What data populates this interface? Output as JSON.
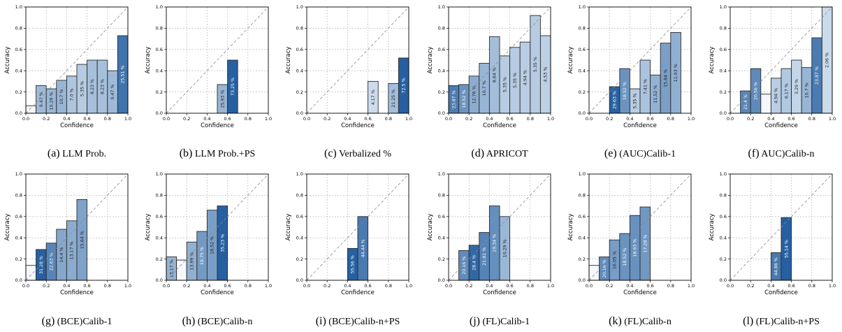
{
  "axes_common": {
    "xlabel": "Confidence",
    "ylabel": "Accuracy",
    "xlim": [
      0,
      1
    ],
    "ylim": [
      0,
      1
    ],
    "ticks": [
      "0.0",
      "0.2",
      "0.4",
      "0.6",
      "0.8",
      "1.0"
    ],
    "grid": true,
    "diagonal": true
  },
  "chart_data": [
    {
      "type": "bar",
      "caption_tag": "(a)",
      "caption_text": "LLM Prob.",
      "bins": [
        [
          0,
          0.07,
          null
        ],
        [
          1,
          0.26,
          "9.47 %"
        ],
        [
          2,
          0.23,
          "10.29 %"
        ],
        [
          3,
          0.31,
          "10.7 %"
        ],
        [
          4,
          0.35,
          "7.0 %"
        ],
        [
          5,
          0.46,
          "5.35 %"
        ],
        [
          6,
          0.5,
          "8.23 %"
        ],
        [
          7,
          0.5,
          "8.23 %"
        ],
        [
          8,
          0.4,
          "9.47 %"
        ],
        [
          9,
          0.73,
          "25.51 %"
        ]
      ]
    },
    {
      "type": "bar",
      "caption_tag": "(b)",
      "caption_text": "LLM Prob.+PS",
      "bins": [
        [
          5,
          0.27,
          "25.93 %"
        ],
        [
          6,
          0.5,
          "73.25 %"
        ]
      ]
    },
    {
      "type": "bar",
      "caption_tag": "(c)",
      "caption_text": "Verbalized %",
      "bins": [
        [
          6,
          0.3,
          "4.17 %"
        ],
        [
          8,
          0.28,
          "21.25 %"
        ],
        [
          9,
          0.52,
          "72.5 %"
        ]
      ]
    },
    {
      "type": "bar",
      "caption_tag": "(d)",
      "caption_text": "APRICOT",
      "bins": [
        [
          0,
          0.26,
          "23.87 %"
        ],
        [
          1,
          0.27,
          "18.52 %"
        ],
        [
          2,
          0.35,
          "12.76 %"
        ],
        [
          3,
          0.47,
          "10.7 %"
        ],
        [
          4,
          0.72,
          "8.64 %"
        ],
        [
          5,
          0.54,
          "5.35 %"
        ],
        [
          6,
          0.62,
          "5.35 %"
        ],
        [
          7,
          0.67,
          "4.94 %"
        ],
        [
          8,
          0.92,
          "5.35 %"
        ],
        [
          9,
          0.73,
          "4.53 %"
        ]
      ]
    },
    {
      "type": "bar",
      "caption_tag": "(e)",
      "caption_text": "(AUC)Calib-1",
      "bins": [
        [
          2,
          0.25,
          "29.63 %"
        ],
        [
          3,
          0.42,
          "18.52 %"
        ],
        [
          4,
          0.23,
          "5.35 %"
        ],
        [
          5,
          0.5,
          "7.41 %"
        ],
        [
          6,
          0.36,
          "11.52 %"
        ],
        [
          7,
          0.66,
          "15.64 %"
        ],
        [
          8,
          0.76,
          "11.93 %"
        ]
      ]
    },
    {
      "type": "bar",
      "caption_tag": "(f)",
      "caption_text": "AUC)Calib-n",
      "bins": [
        [
          1,
          0.21,
          "21.4 %"
        ],
        [
          2,
          0.42,
          "20.58 %"
        ],
        [
          3,
          0.18,
          null
        ],
        [
          4,
          0.33,
          "4.94 %"
        ],
        [
          5,
          0.42,
          "6.17 %"
        ],
        [
          6,
          0.5,
          "3.29 %"
        ],
        [
          7,
          0.43,
          "10.7 %"
        ],
        [
          8,
          0.71,
          "23.87 %"
        ],
        [
          9,
          1.0,
          "2.06 %"
        ]
      ]
    },
    {
      "type": "bar",
      "caption_tag": "(g)",
      "caption_text": "(BCE)Calib-1",
      "bins": [
        [
          0,
          0.14,
          null
        ],
        [
          1,
          0.29,
          "31.28 %"
        ],
        [
          2,
          0.35,
          "22.63 %"
        ],
        [
          3,
          0.48,
          "14.4 %"
        ],
        [
          4,
          0.56,
          "13.17 %"
        ],
        [
          5,
          0.76,
          "15.64 %"
        ]
      ]
    },
    {
      "type": "bar",
      "caption_tag": "(h)",
      "caption_text": "(BCE)Calib-n",
      "bins": [
        [
          0,
          0.22,
          "13.17 %"
        ],
        [
          1,
          0.19,
          null
        ],
        [
          2,
          0.36,
          "13.99 %"
        ],
        [
          3,
          0.46,
          "19.75 %"
        ],
        [
          4,
          0.66,
          "18.52 %"
        ],
        [
          5,
          0.7,
          "35.23 %"
        ]
      ]
    },
    {
      "type": "bar",
      "caption_tag": "(i)",
      "caption_text": "(BCE)Calib-n+PS",
      "bins": [
        [
          4,
          0.3,
          "55.56 %"
        ],
        [
          5,
          0.6,
          "44.44 %"
        ]
      ]
    },
    {
      "type": "bar",
      "caption_tag": "(j)",
      "caption_text": "(FL)Calib-1",
      "bins": [
        [
          1,
          0.28,
          "20.16 %"
        ],
        [
          2,
          0.33,
          "28.4 %"
        ],
        [
          3,
          0.45,
          "21.81 %"
        ],
        [
          4,
          0.7,
          "19.34 %"
        ],
        [
          5,
          0.6,
          "10.29 %"
        ]
      ]
    },
    {
      "type": "bar",
      "caption_tag": "(k)",
      "caption_text": "(FL)Calib-n",
      "bins": [
        [
          0,
          0.14,
          null
        ],
        [
          1,
          0.22,
          "20.16 %"
        ],
        [
          2,
          0.38,
          "16.05 %"
        ],
        [
          3,
          0.44,
          "18.52 %"
        ],
        [
          4,
          0.61,
          "18.93 %"
        ],
        [
          5,
          0.69,
          "17.28 %"
        ]
      ]
    },
    {
      "type": "bar",
      "caption_tag": "(l)",
      "caption_text": "(FL)Calib-n+PS",
      "bins": [
        [
          4,
          0.26,
          "44.86 %"
        ],
        [
          5,
          0.59,
          "55.14 %"
        ]
      ]
    }
  ]
}
